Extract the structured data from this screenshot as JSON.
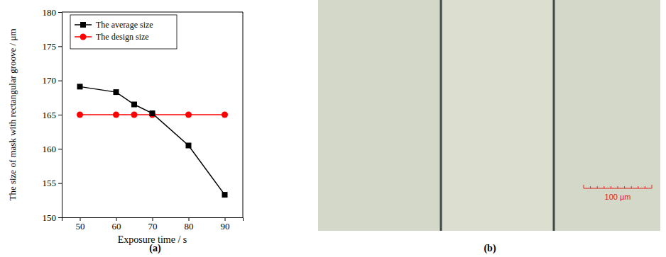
{
  "chart_data": {
    "type": "line",
    "x_label": "Exposure time  / s",
    "y_label": "The size of mask with rectangular groove / μm",
    "x": [
      50,
      60,
      65,
      70,
      80,
      90
    ],
    "series": [
      {
        "name": "The average size",
        "color": "#000000",
        "marker": "square",
        "values": [
          169.1,
          168.3,
          166.5,
          165.2,
          160.5,
          153.3
        ]
      },
      {
        "name": "The design size",
        "color": "#ff0000",
        "marker": "circle",
        "values": [
          165,
          165,
          165,
          165,
          165,
          165
        ]
      }
    ],
    "xlim": [
      45,
      95
    ],
    "xticks": [
      50,
      60,
      70,
      80,
      90
    ],
    "ylim": [
      150,
      180
    ],
    "yticks": [
      150,
      155,
      160,
      165,
      170,
      175,
      180
    ],
    "grid": false,
    "legend": "upper left"
  },
  "panel_labels": [
    "(a)",
    "(b)"
  ],
  "micrograph": {
    "scale_bar": "100 µm"
  }
}
